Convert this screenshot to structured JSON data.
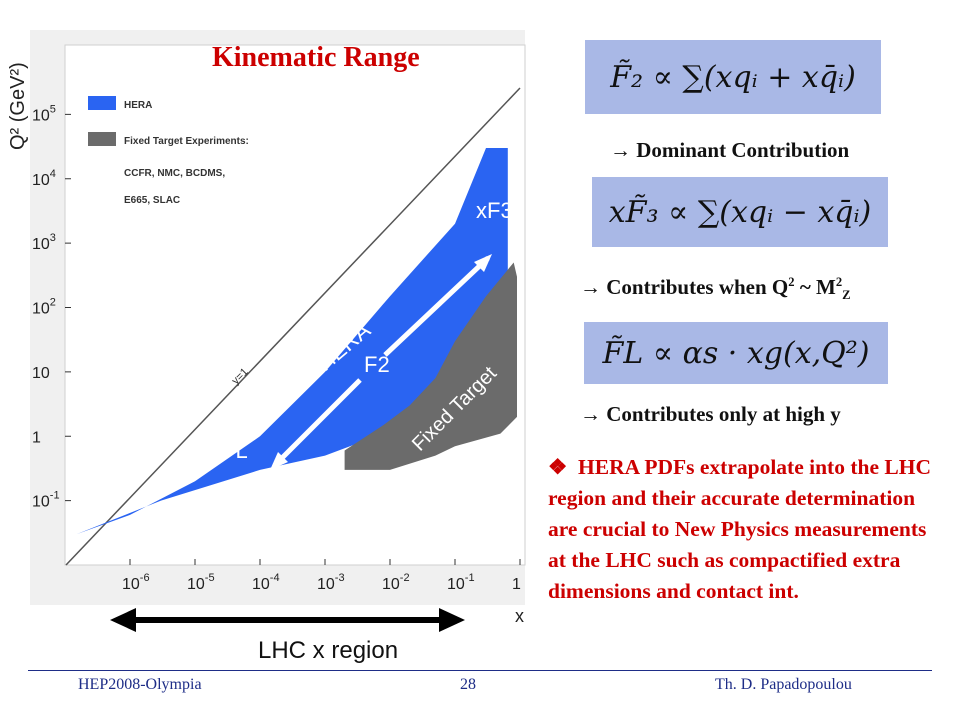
{
  "slide": {
    "title": "Kinematic Range",
    "formulas": [
      {
        "text": "F̃₂ ∝ ∑(xqᵢ + xq̄ᵢ)"
      },
      {
        "text": "xF̃₃ ∝ ∑(xqᵢ − xq̄ᵢ)"
      },
      {
        "text": "F̃L ∝ αs · xg(x,Q²)"
      }
    ],
    "notes": {
      "dominant": "→ Dominant Contribution",
      "contrib_q_prefix": "→ Contributes when Q",
      "contrib_q_mid": " ~ M",
      "contrib_q_sup1": "2",
      "contrib_q_sup2": "2",
      "contrib_q_sub": "Z",
      "high_y": "→ Contributes only at high y"
    },
    "paragraph_bullet": "❖",
    "paragraph": "HERA PDFs extrapolate into the LHC region and their accurate determination are crucial to New Physics measurements at the LHC such as compactified extra dimensions and contact int."
  },
  "footer": {
    "left": "HEP2008-Olympia",
    "page": "28",
    "right": "Th. D. Papadopoulou"
  },
  "chart_data": {
    "type": "area",
    "title": "",
    "xlabel": "x",
    "ylabel": "Q² (GeV²)",
    "x_scale": "log",
    "y_scale": "log",
    "xlim": [
      1e-07,
      1
    ],
    "ylim": [
      0.01,
      1000000
    ],
    "x_ticks": [
      "10^-6",
      "10^-5",
      "10^-4",
      "10^-3",
      "10^-2",
      "10^-1",
      "1"
    ],
    "y_ticks": [
      "10^-1",
      "1",
      "10",
      "10^2",
      "10^3",
      "10^4",
      "10^5"
    ],
    "legend": [
      {
        "name": "HERA",
        "color": "#2a64f2"
      },
      {
        "name": "Fixed Target Experiments:",
        "color": "#6b6b6b"
      }
    ],
    "legend_extra": [
      "CCFR, NMC, BCDMS,",
      "E665, SLAC"
    ],
    "region_labels": {
      "hera": "HERA",
      "fixed": "Fixed Target",
      "xf3": "xF3",
      "f2": "F2",
      "fl": "FL",
      "y1": "y=1"
    },
    "series": [
      {
        "name": "HERA",
        "polygon": [
          [
            1.5e-07,
            0.03
          ],
          [
            3e-06,
            0.1
          ],
          [
            0.0001,
            0.3
          ],
          [
            0.001,
            0.5
          ],
          [
            0.01,
            1.2
          ],
          [
            0.1,
            3
          ],
          [
            0.5,
            10
          ],
          [
            0.65,
            100
          ],
          [
            0.65,
            30000
          ],
          [
            0.3,
            30000
          ],
          [
            0.1,
            2000
          ],
          [
            0.01,
            150
          ],
          [
            0.001,
            10
          ],
          [
            0.0001,
            1
          ],
          [
            1e-05,
            0.2
          ],
          [
            1e-06,
            0.06
          ]
        ]
      },
      {
        "name": "Fixed Target",
        "polygon": [
          [
            0.002,
            0.3
          ],
          [
            0.01,
            0.3
          ],
          [
            0.05,
            0.5
          ],
          [
            0.1,
            0.7
          ],
          [
            0.5,
            1.1
          ],
          [
            0.9,
            2
          ],
          [
            0.9,
            300
          ],
          [
            0.8,
            500
          ],
          [
            0.3,
            150
          ],
          [
            0.1,
            30
          ],
          [
            0.05,
            8
          ],
          [
            0.02,
            3
          ],
          [
            0.008,
            1.5
          ],
          [
            0.002,
            0.6
          ]
        ]
      }
    ],
    "lhc_range": {
      "label": "LHC x region",
      "x_from": 1e-06,
      "x_to": 0.1
    }
  },
  "colors": {
    "hera": "#2a64f2",
    "fixed": "#6b6b6b",
    "title": "#cc0000",
    "formula_bg": "#a9b8e6",
    "footer": "#1e2d87"
  }
}
